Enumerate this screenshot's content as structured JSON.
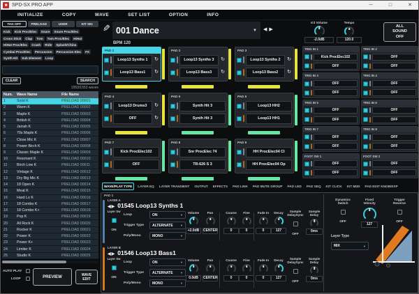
{
  "window": {
    "title": "SPD-SX PRO APP"
  },
  "icons": {
    "pencil": "✎",
    "loop": "↻",
    "prev": "◀",
    "next": "▼",
    "left": "◀",
    "right": "▶",
    "down": "▼",
    "minimize": "─",
    "maximize": "□",
    "close": "✕",
    "app_glyph": "■"
  },
  "menu": [
    "INITIALIZE",
    "COPY",
    "WAVE",
    "SET LIST",
    "OPTION",
    "INFO"
  ],
  "colors": {
    "accent": "#3ecfdd",
    "yellow": "#e8e33c",
    "green": "#68e6a6",
    "orange": "#d8781e",
    "layer_a_blue": "#4e7fae",
    "layer_b_orange": "#d8781e",
    "sliver_a": "#7a8894",
    "sliver_b": "#b06a20"
  },
  "sidebar": {
    "filter_buttons": [
      "TAG OFF",
      "PRELOAD",
      "USER",
      "KIT 001"
    ],
    "tag_rows": [
      [
        "Kick",
        "Kick Proc/Elec",
        "Snare",
        "Snare Proc/Elec"
      ],
      [
        "Cross Stick",
        "Clap",
        "Tom",
        "Tom Proc/Elec",
        "HiHat"
      ],
      [
        "HiHat Proc/Elec",
        "Crash",
        "Ride",
        "Splash/China"
      ],
      [
        "Cymbal Proc/Elec",
        "Percussion",
        "Percussion Elec",
        "FX"
      ],
      [
        "Synth Hit",
        "Sub Element",
        "Loop"
      ]
    ],
    "search_value": "",
    "clear_label": "CLEAR",
    "search_label": "SEARCH",
    "wave_count": "1553/1553 waves",
    "table": {
      "headers": [
        "Num.",
        "Wave Name",
        "File Name"
      ],
      "selected_row": 0,
      "rows": [
        [
          "1",
          "Solid K",
          "PRELOAD 00001"
        ],
        [
          "2",
          "Warm K",
          "PRELOAD 00002"
        ],
        [
          "3",
          "Maple K",
          "PRELOAD 00003"
        ],
        [
          "4",
          "British K",
          "PRELOAD 00004"
        ],
        [
          "5",
          "Jarrah K",
          "PRELOAD 00005"
        ],
        [
          "6",
          "70s Maple K",
          "PRELOAD 00006"
        ],
        [
          "7",
          "Close Mic K",
          "PRELOAD 00007"
        ],
        [
          "8",
          "Power Birch K",
          "PRELOAD 00008"
        ],
        [
          "9",
          "Classic Maple K",
          "PRELOAD 00009"
        ],
        [
          "10",
          "Resonant K",
          "PRELOAD 00010"
        ],
        [
          "11",
          "Birch Low K",
          "PRELOAD 00011"
        ],
        [
          "12",
          "Vintage K",
          "PRELOAD 00012"
        ],
        [
          "13",
          "Dry Big Mic K",
          "PRELOAD 00013"
        ],
        [
          "14",
          "18 Open K",
          "PRELOAD 00014"
        ],
        [
          "15",
          "Meat K",
          "PRELOAD 00015"
        ],
        [
          "16",
          "Hard Lo K",
          "PRELOAD 00016"
        ],
        [
          "17",
          "18 Combo K",
          "PRELOAD 00017"
        ],
        [
          "18",
          "18 Combo K+",
          "PRELOAD 00018"
        ],
        [
          "19",
          "Pop K",
          "PRELOAD 00019"
        ],
        [
          "20",
          "All Rock K",
          "PRELOAD 00020"
        ],
        [
          "21",
          "Rocker K",
          "PRELOAD 00021"
        ],
        [
          "22",
          "Power K",
          "PRELOAD 00022"
        ],
        [
          "23",
          "Power K+",
          "PRELOAD 00023"
        ],
        [
          "24",
          "Limiter K",
          "PRELOAD 00024"
        ],
        [
          "25",
          "Studio K",
          "PRELOAD 00025"
        ]
      ]
    },
    "auto_play_label": "AUTO PLAY",
    "loop_label": "LOOP",
    "preview_label": "PREVIEW",
    "wave_edit_label": "WAVE\nEDIT"
  },
  "header": {
    "kit_name": "001 Dance",
    "bpm": "BPM 120",
    "kit_volume": {
      "label": "Kit Volume",
      "value": "-2.0dB",
      "arc": 0.55
    },
    "tempo": {
      "label": "Tempo",
      "value": "120.0",
      "arc": 0.38
    },
    "all_sound_off": "ALL\nSOUND\nOFF"
  },
  "pads": [
    {
      "id": "PAD 1",
      "selected": true,
      "color": "yellow",
      "rows": [
        {
          "name": "Loop13 Synths 1",
          "loop": true
        },
        {
          "name": "Loop13 Bass1",
          "loop": true
        }
      ]
    },
    {
      "id": "PAD 2",
      "selected": false,
      "color": "yellow",
      "rows": [
        {
          "name": "Loop13 Synths 3",
          "loop": true
        },
        {
          "name": "Loop13 Bass3",
          "loop": true
        }
      ]
    },
    {
      "id": "PAD 3",
      "selected": false,
      "color": "yellow",
      "rows": [
        {
          "name": "Loop13 Synths 2",
          "loop": true
        },
        {
          "name": "Loop13 Bass2",
          "loop": true
        }
      ]
    },
    {
      "id": "PAD 4",
      "selected": false,
      "color": "yellow",
      "rows": [
        {
          "name": "Loop13 Drums3",
          "loop": true
        },
        {
          "name": "OFF",
          "loop": true
        }
      ]
    },
    {
      "id": "PAD 5",
      "selected": false,
      "color": "green",
      "rows": [
        {
          "name": "Synth Hit 3",
          "loop": false
        },
        {
          "name": "Synth Hit 3",
          "loop": false
        }
      ]
    },
    {
      "id": "PAD 6",
      "selected": false,
      "color": "green",
      "rows": [
        {
          "name": "Loop13 HH2",
          "loop": false
        },
        {
          "name": "Loop13 HH1",
          "loop": false
        }
      ]
    },
    {
      "id": "PAD 7",
      "selected": false,
      "color": "green",
      "rows": [
        {
          "name": "Kick ProcElec102",
          "loop": false
        },
        {
          "name": "OFF",
          "loop": false
        }
      ]
    },
    {
      "id": "PAD 8",
      "selected": false,
      "color": "green",
      "rows": [
        {
          "name": "Snr ProcElec 74",
          "loop": false
        },
        {
          "name": "TR-626 S 3",
          "loop": false
        }
      ]
    },
    {
      "id": "PAD 9",
      "selected": false,
      "color": "green",
      "rows": [
        {
          "name": "HH ProcElec04 Cl",
          "loop": false
        },
        {
          "name": "HH ProcElec04 Op",
          "loop": false
        }
      ]
    }
  ],
  "trig_inputs": [
    {
      "id": "TRIG IN 1",
      "rows": [
        "Kick ProcElec102",
        "OFF"
      ]
    },
    {
      "id": "TRIG IN 2",
      "rows": [
        "OFF",
        "OFF"
      ]
    },
    {
      "id": "TRIG IN 3",
      "rows": [
        "OFF",
        "OFF"
      ]
    },
    {
      "id": "TRIG IN 4",
      "rows": [
        "OFF",
        "OFF"
      ]
    },
    {
      "id": "TRIG IN 5",
      "rows": [
        "OFF",
        "OFF"
      ]
    },
    {
      "id": "TRIG IN 6",
      "rows": [
        "OFF",
        "OFF"
      ]
    },
    {
      "id": "TRIG IN 7",
      "rows": [
        "OFF",
        "OFF"
      ]
    },
    {
      "id": "TRIG IN 8",
      "rows": [
        "OFF",
        "OFF"
      ]
    },
    {
      "id": "FOOT SW 1",
      "rows": [
        "OFF",
        "OFF"
      ]
    },
    {
      "id": "FOOT SW 2",
      "rows": [
        "OFF",
        "OFF"
      ]
    }
  ],
  "tabs": [
    {
      "label": "WAVE/PLAY TYPE",
      "active": true
    },
    {
      "label": "LAYER EQ",
      "active": false
    },
    {
      "label": "LAYER TRANSIENT",
      "active": false
    },
    {
      "label": "OUTPUT",
      "active": false
    },
    {
      "label": "EFFECTS",
      "active": false
    },
    {
      "label": "PAD LINK",
      "active": false
    },
    {
      "label": "PAD MUTE GROUP",
      "active": false
    },
    {
      "label": "PAD LED",
      "active": false
    },
    {
      "label": "PAD SEQ",
      "active": false
    },
    {
      "label": "KIT CLICK",
      "active": false
    },
    {
      "label": "KIT MIDI",
      "active": false
    },
    {
      "label": "PAD EDIT KNOB/EXP",
      "active": false
    }
  ],
  "editor": {
    "pad_label": "PAD 1",
    "layers": [
      {
        "id": "LAYER A",
        "accent": "#4e7fae",
        "wave_no": "01545",
        "wave_name": "Loop13 Synths 1",
        "layer_sw": {
          "label": "Layer Sw",
          "value": "ON"
        },
        "dropdowns": [
          {
            "label": "Loop",
            "value": "ON"
          },
          {
            "label": "Trigger Type",
            "value": "ALTERNATE"
          },
          {
            "label": "Poly/Mono",
            "value": "MONO"
          }
        ],
        "knobs": [
          {
            "label": "Volume",
            "value": "+2.0dB",
            "style": "arc",
            "arc": 0.55
          },
          {
            "label": "Pan",
            "value": "CENTER",
            "style": "tick"
          },
          {
            "label": "Coarse",
            "value": "0",
            "style": "tick"
          },
          {
            "label": "Fine",
            "value": "0",
            "style": "tick"
          },
          {
            "label": "Fade In",
            "value": "0",
            "style": "tick"
          },
          {
            "label": "Decay",
            "value": "127",
            "style": "half"
          }
        ],
        "sample_delay_sync": {
          "label": "Sample\nDelaySync",
          "value": "OFF"
        },
        "sample_delay": {
          "label": "Sample\nDelay",
          "value": "0ms"
        }
      },
      {
        "id": "LAYER B",
        "accent": "#d8781e",
        "wave_no": "01546",
        "wave_name": "Loop13 Bass1",
        "layer_sw": {
          "label": "Layer Sw",
          "value": "ON"
        },
        "dropdowns": [
          {
            "label": "Loop",
            "value": "ON"
          },
          {
            "label": "Trigger Type",
            "value": "ALTERNATE"
          },
          {
            "label": "Poly/Mono",
            "value": "MONO"
          }
        ],
        "knobs": [
          {
            "label": "Volume",
            "value": "0.0dB",
            "style": "arc",
            "arc": 0.5
          },
          {
            "label": "Pan",
            "value": "CENTER",
            "style": "tick"
          },
          {
            "label": "Coarse",
            "value": "0",
            "style": "tick"
          },
          {
            "label": "Fine",
            "value": "0",
            "style": "tick"
          },
          {
            "label": "Fade In",
            "value": "0",
            "style": "tick"
          },
          {
            "label": "Decay",
            "value": "127",
            "style": "half"
          }
        ],
        "sample_delay_sync": {
          "label": "Sample\nDelaySync",
          "value": "OFF"
        },
        "sample_delay": {
          "label": "Sample\nDelay",
          "value": "0ms"
        }
      }
    ],
    "right": {
      "dynamics_switch": {
        "label": "Dynamics\nSwitch",
        "value": "OFF"
      },
      "fixed_velocity": {
        "label": "Fixed\nVelocity",
        "value": "127"
      },
      "trigger_reserve": {
        "label": "Trigger\nReserve",
        "value": "OFF"
      },
      "layer_type": {
        "label": "Layer Type",
        "value": "MIX"
      }
    }
  }
}
